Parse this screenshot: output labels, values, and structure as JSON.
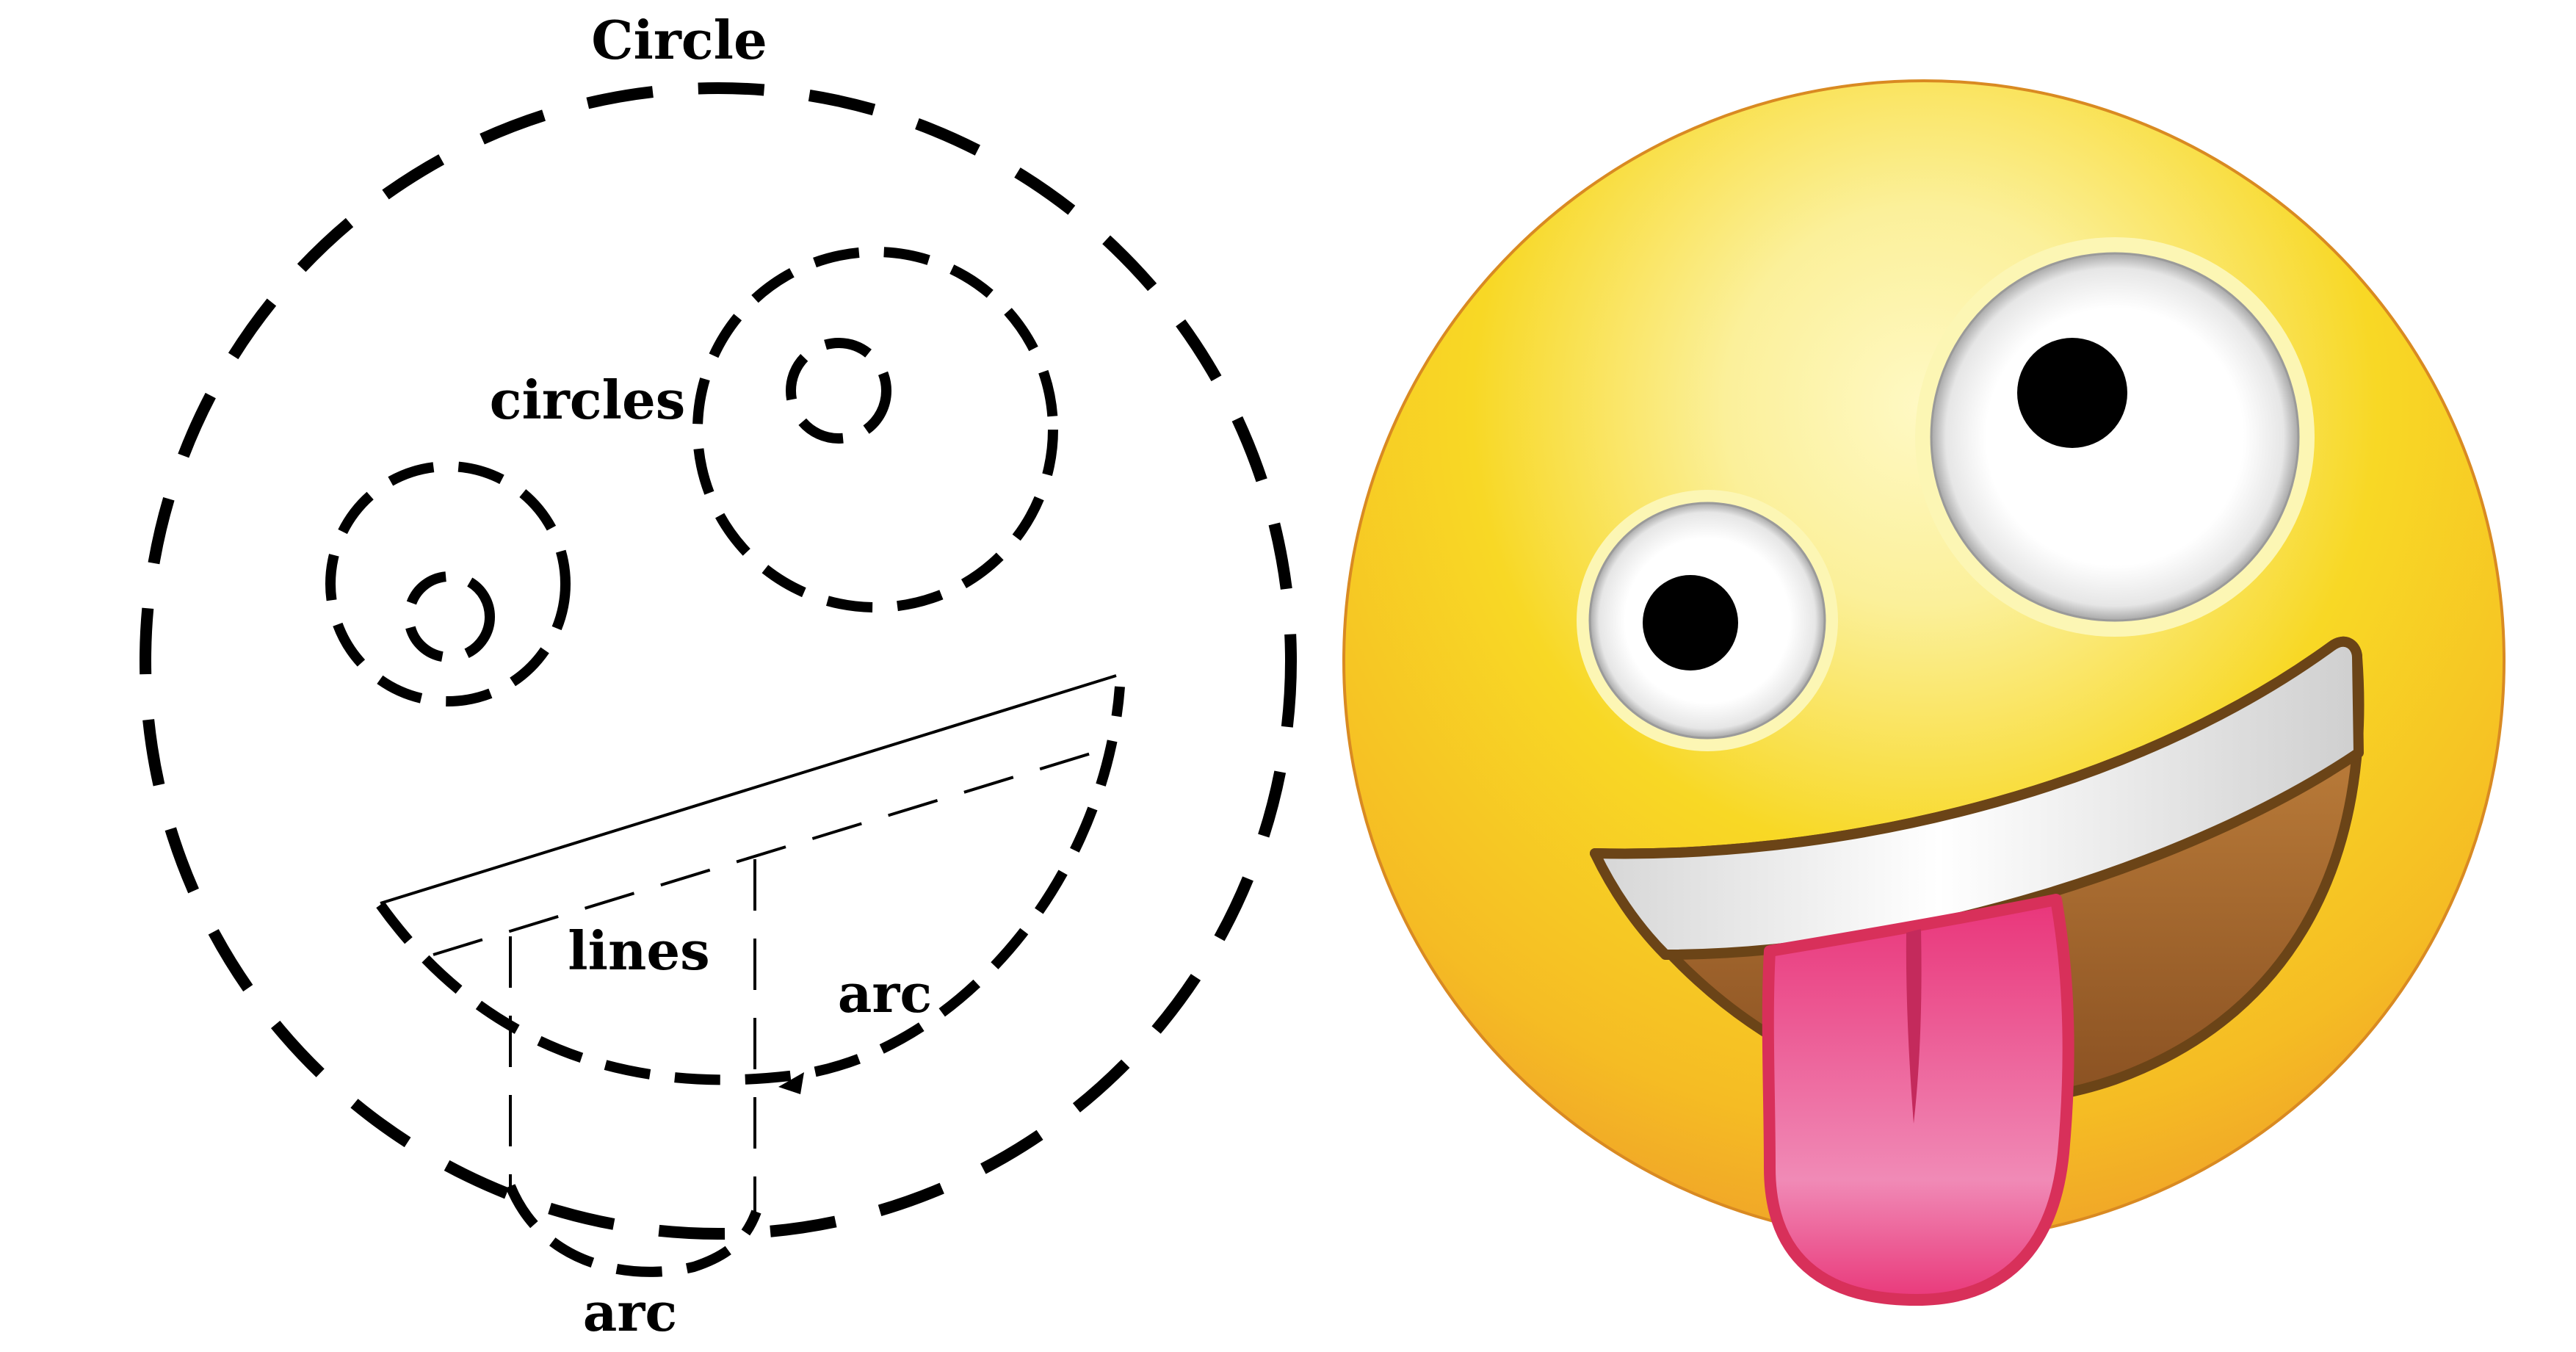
{
  "diagram": {
    "labels": {
      "circle": "Circle",
      "circles": "circles",
      "lines": "lines",
      "arc_mouth": "arc",
      "arc_tongue": "arc"
    }
  },
  "emoji": {
    "name": "zany-face-emoji",
    "colors": {
      "face_light": "#FBF29A",
      "face_mid": "#F8D825",
      "face_dark": "#F2A12A",
      "face_rim": "#D8871C",
      "outline": "#6B4417",
      "mouth_dark": "#8A5122",
      "mouth_light": "#C88840",
      "teeth": "#E2E2E2",
      "tongue": "#EA5F8C",
      "tongue_edge": "#D8305A",
      "pupil": "#000000",
      "eye_white": "#FFFFFF"
    }
  }
}
